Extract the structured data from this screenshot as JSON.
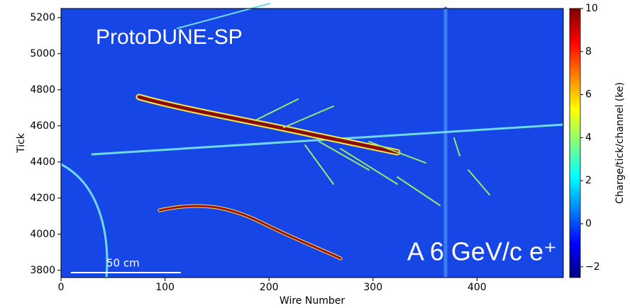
{
  "chart_data": {
    "type": "image",
    "annotations": [
      "ProtoDUNE-SP",
      "A 6 GeV/c e⁺",
      "50 cm"
    ],
    "x_label": "Wire Number",
    "y_label": "Tick",
    "xlim": [
      0,
      483
    ],
    "xticks": [
      0,
      100,
      200,
      300,
      400
    ],
    "ylim": [
      3760,
      5250
    ],
    "yticks": [
      3800,
      4000,
      4200,
      4400,
      4600,
      4800,
      5000,
      5200
    ],
    "colorbar": {
      "label": "Charge/tick/channel (ke)",
      "lim": [
        -2.5,
        10
      ],
      "ticks": [
        {
          "value": -2,
          "label": "−2"
        },
        0,
        2,
        4,
        6,
        8,
        10
      ],
      "colormap": [
        "#00007f",
        "#0000ff",
        "#0080ff",
        "#00ffff",
        "#80ff80",
        "#ffff00",
        "#ff8000",
        "#ff0000",
        "#7f0000"
      ]
    }
  }
}
